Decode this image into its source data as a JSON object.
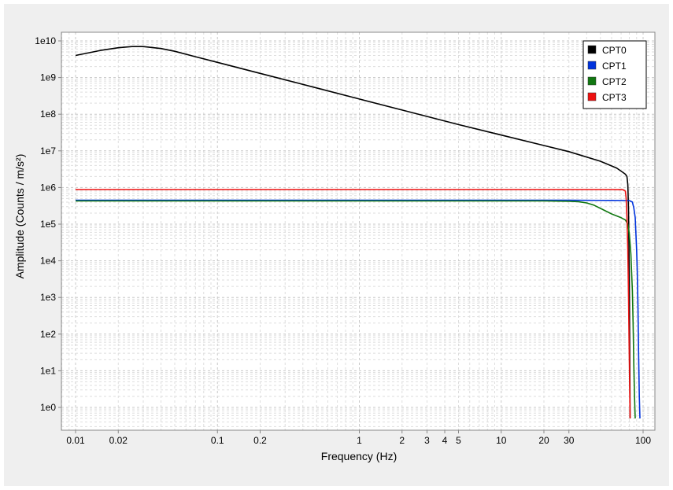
{
  "chart_data": {
    "type": "line",
    "title": "",
    "xlabel": "Frequency (Hz)",
    "ylabel": "Amplitude (Counts / m/s²)",
    "x_scale": "log",
    "y_scale": "log",
    "xlim": [
      0.01,
      100
    ],
    "ylim": [
      1,
      10000000000
    ],
    "x_ticks": [
      {
        "value": 0.01,
        "label": "0.01"
      },
      {
        "value": 0.02,
        "label": "0.02"
      },
      {
        "value": 0.1,
        "label": "0.1"
      },
      {
        "value": 0.2,
        "label": "0.2"
      },
      {
        "value": 1,
        "label": "1"
      },
      {
        "value": 2,
        "label": "2"
      },
      {
        "value": 3,
        "label": "3"
      },
      {
        "value": 4,
        "label": "4"
      },
      {
        "value": 5,
        "label": "5"
      },
      {
        "value": 10,
        "label": "10"
      },
      {
        "value": 20,
        "label": "20"
      },
      {
        "value": 30,
        "label": "30"
      },
      {
        "value": 100,
        "label": "100"
      }
    ],
    "y_ticks": [
      {
        "value": 1,
        "label": "1e0"
      },
      {
        "value": 10,
        "label": "1e1"
      },
      {
        "value": 100,
        "label": "1e2"
      },
      {
        "value": 1000,
        "label": "1e3"
      },
      {
        "value": 10000,
        "label": "1e4"
      },
      {
        "value": 100000,
        "label": "1e5"
      },
      {
        "value": 1000000,
        "label": "1e6"
      },
      {
        "value": 10000000,
        "label": "1e7"
      },
      {
        "value": 100000000,
        "label": "1e8"
      },
      {
        "value": 1000000000,
        "label": "1e9"
      },
      {
        "value": 10000000000,
        "label": "1e10"
      }
    ],
    "grid": true,
    "legend_position": "top-right",
    "series": [
      {
        "name": "CPT0",
        "color": "#000000",
        "x": [
          0.01,
          0.015,
          0.02,
          0.025,
          0.03,
          0.04,
          0.05,
          0.07,
          0.1,
          0.2,
          0.5,
          1,
          2,
          5,
          10,
          20,
          30,
          50,
          65,
          72,
          75,
          77,
          78,
          79,
          80,
          81
        ],
        "y": [
          4000000000,
          5500000000,
          6500000000,
          7000000000,
          7000000000,
          6200000000,
          5200000000,
          3700000000,
          2600000000,
          1300000000,
          520000000,
          260000000,
          130000000,
          52000000,
          27000000,
          14000000,
          9500000,
          5200000,
          3400000,
          2600000,
          2300000,
          2000000,
          1200000,
          250000,
          3000,
          0.5
        ]
      },
      {
        "name": "CPT1",
        "color": "#0033dd",
        "x": [
          0.01,
          0.1,
          1,
          10,
          30,
          60,
          80,
          84,
          86,
          88,
          90,
          91,
          92,
          93,
          94,
          95
        ],
        "y": [
          450000,
          450000,
          450000,
          450000,
          450000,
          445000,
          440000,
          400000,
          280000,
          150000,
          20000,
          5000,
          500,
          30,
          2,
          0.5
        ]
      },
      {
        "name": "CPT2",
        "color": "#117711",
        "x": [
          0.01,
          0.1,
          1,
          10,
          20,
          30,
          35,
          40,
          45,
          50,
          60,
          70,
          75,
          78,
          80,
          82,
          84,
          85,
          86,
          87,
          88
        ],
        "y": [
          430000,
          430000,
          430000,
          430000,
          430000,
          420000,
          410000,
          380000,
          330000,
          270000,
          190000,
          150000,
          130000,
          100000,
          55000,
          15000,
          1500,
          200,
          15,
          2,
          0.5
        ]
      },
      {
        "name": "CPT3",
        "color": "#ee1111",
        "x": [
          0.01,
          0.1,
          1,
          10,
          30,
          60,
          72,
          75,
          76,
          77,
          78,
          79,
          80,
          81
        ],
        "y": [
          880000,
          880000,
          880000,
          880000,
          880000,
          880000,
          870000,
          800000,
          500000,
          150000,
          20000,
          1000,
          20,
          0.5
        ]
      }
    ]
  }
}
